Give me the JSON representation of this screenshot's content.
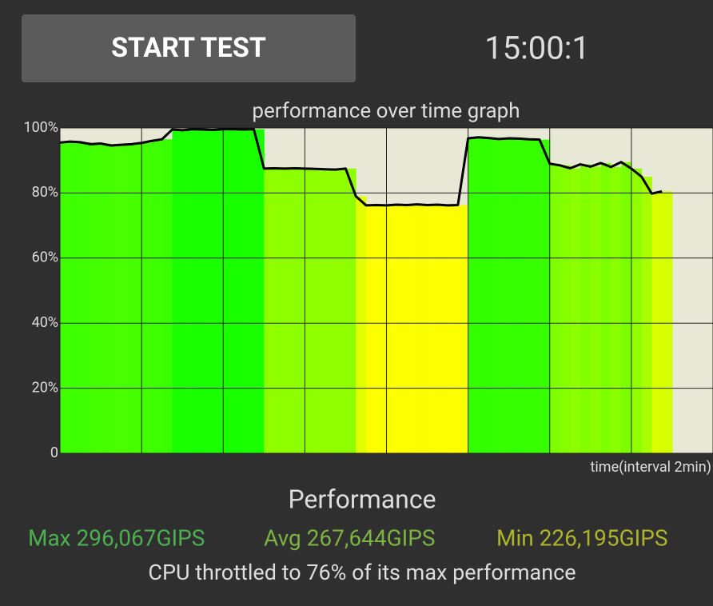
{
  "button": "START TEST",
  "timer": "15:00:1",
  "chart_data": {
    "type": "area",
    "title": "performance over time graph",
    "x_label": "time(interval 2min)",
    "x": [
      0,
      0.25,
      0.5,
      0.75,
      1,
      1.25,
      1.5,
      1.75,
      2,
      2.25,
      2.5,
      2.75,
      3,
      3.25,
      3.5,
      3.75,
      4,
      4.25,
      4.5,
      4.75,
      5,
      5.25,
      5.5,
      5.75,
      6,
      6.25,
      6.5,
      6.75,
      7,
      7.25,
      7.5,
      7.75,
      8,
      8.25,
      8.5,
      8.75,
      9,
      9.25,
      9.5,
      9.75,
      10,
      10.25,
      10.5,
      10.75,
      11,
      11.25,
      11.5,
      11.75,
      12,
      12.25,
      12.5,
      12.75,
      13,
      13.25,
      13.5,
      13.75,
      14,
      14.25,
      14.5,
      14.75
    ],
    "values": [
      95.5,
      95.8,
      95.6,
      95,
      95.2,
      94.6,
      94.8,
      95,
      95.4,
      96,
      96.5,
      99.5,
      99.3,
      99.6,
      99.5,
      99.4,
      99.6,
      99.6,
      99.5,
      99.6,
      87.5,
      87.6,
      87.5,
      87.6,
      87.5,
      87.4,
      87.3,
      87.2,
      87.5,
      79,
      76.2,
      76.3,
      76.2,
      76.4,
      76.3,
      76.5,
      76.3,
      76.4,
      76.2,
      76.3,
      96.8,
      97.1,
      96.9,
      96.6,
      96.8,
      96.7,
      96.5,
      96.4,
      89,
      88.5,
      87.6,
      88.8,
      88.1,
      89.2,
      88,
      89.5,
      87.5,
      85,
      79.8,
      80.5
    ],
    "xlim": [
      0,
      16
    ],
    "xticks": [
      0,
      2,
      4,
      6,
      8,
      10,
      12,
      14,
      16
    ],
    "ylim": [
      0,
      100
    ],
    "yticks": [
      0,
      {
        "value": 20,
        "label": "20%"
      },
      {
        "value": 40,
        "label": "40%"
      },
      {
        "value": 60,
        "label": "60%"
      },
      {
        "value": 80,
        "label": "80%"
      },
      {
        "value": 100,
        "label": "100%"
      }
    ],
    "grid": true,
    "line_color": "#000000",
    "background": "#e8e8d6"
  },
  "summary": {
    "title": "Performance",
    "max": "Max 296,067GIPS",
    "avg": "Avg 267,644GIPS",
    "min": "Min 226,195GIPS",
    "note": "CPU throttled to 76% of its max performance"
  }
}
